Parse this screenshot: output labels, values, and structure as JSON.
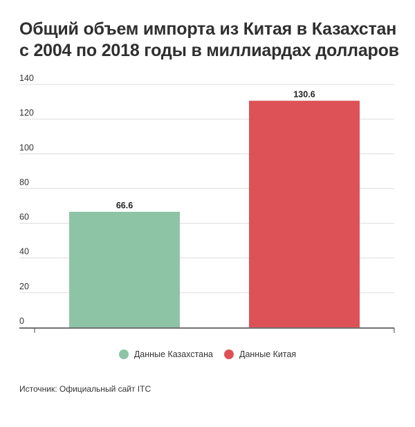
{
  "title": "Общий объем импорта из Китая в Казахстан с 2004 по 2018 годы в миллиардах долларов",
  "source": "Источник: Официальный сайт ITC",
  "chart_data": {
    "type": "bar",
    "title": "Общий объем импорта из Китая в Казахстан с 2004 по 2018 годы в миллиардах долларов",
    "categories": [
      "Данные Казахстана",
      "Данные Китая"
    ],
    "values": [
      66.6,
      130.6
    ],
    "value_labels": [
      "66.6",
      "130.6"
    ],
    "colors": [
      "#8ec4a6",
      "#dd5256"
    ],
    "ylim": [
      0,
      140
    ],
    "yticks": [
      0,
      20,
      40,
      60,
      80,
      100,
      120,
      140
    ],
    "grid": true,
    "legend": {
      "placement": "bottom",
      "items": [
        {
          "label": "Данные Казахстана",
          "color": "#8ec4a6"
        },
        {
          "label": "Данные Китая",
          "color": "#dd5256"
        }
      ]
    }
  }
}
